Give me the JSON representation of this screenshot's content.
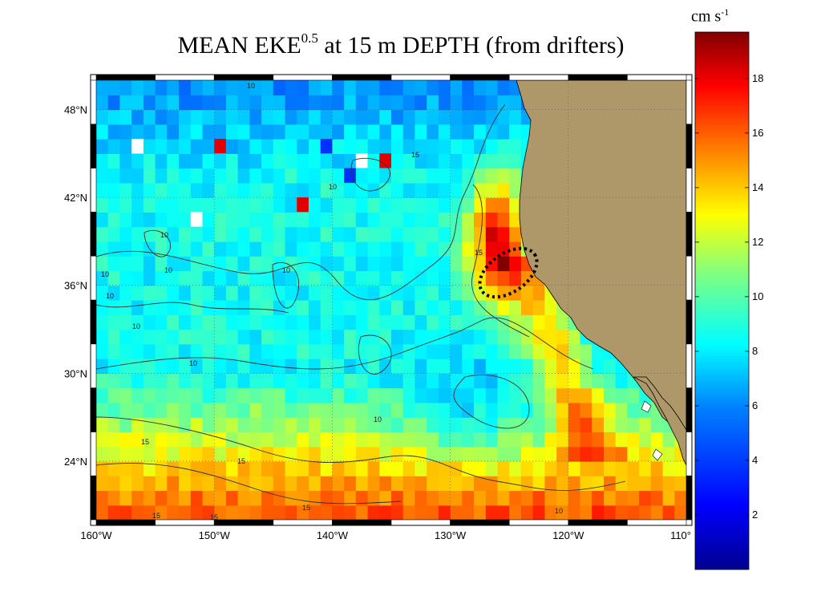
{
  "title": {
    "main": "MEAN EKE",
    "exponent": "0.5",
    "rest": " at 15 m DEPTH (from drifters)"
  },
  "colorbar": {
    "unit": "cm s",
    "unit_exponent": "-1",
    "ticks": [
      "2",
      "4",
      "6",
      "8",
      "10",
      "12",
      "14",
      "16",
      "18"
    ],
    "range": [
      0,
      19.7
    ],
    "colors": [
      "#00008f",
      "#0000ff",
      "#0080ff",
      "#00ffff",
      "#80ff80",
      "#ffff00",
      "#ff8000",
      "#ff0000",
      "#800000"
    ]
  },
  "map": {
    "lon_range": [
      -160,
      -110
    ],
    "lat_range": [
      20,
      50
    ],
    "lon_ticks": [
      {
        "value": -160,
        "label": "160°W"
      },
      {
        "value": -150,
        "label": "150°W"
      },
      {
        "value": -140,
        "label": "140°W"
      },
      {
        "value": -130,
        "label": "130°W"
      },
      {
        "value": -120,
        "label": "120°W"
      },
      {
        "value": -110,
        "label": "110°"
      }
    ],
    "lat_ticks": [
      {
        "value": 48,
        "label": "48°N"
      },
      {
        "value": 42,
        "label": "42°N"
      },
      {
        "value": 36,
        "label": "36°N"
      },
      {
        "value": 30,
        "label": "30°N"
      },
      {
        "value": 24,
        "label": "24°N"
      }
    ],
    "land_color": "#ae9769",
    "highlight": "dotted ellipse off central California (~126°W, 38°N)",
    "contour_labels": [
      "10",
      "10",
      "10",
      "10",
      "10",
      "10",
      "10",
      "10",
      "10",
      "10",
      "15",
      "15",
      "15",
      "15",
      "15",
      "15",
      "15",
      "10"
    ]
  }
}
